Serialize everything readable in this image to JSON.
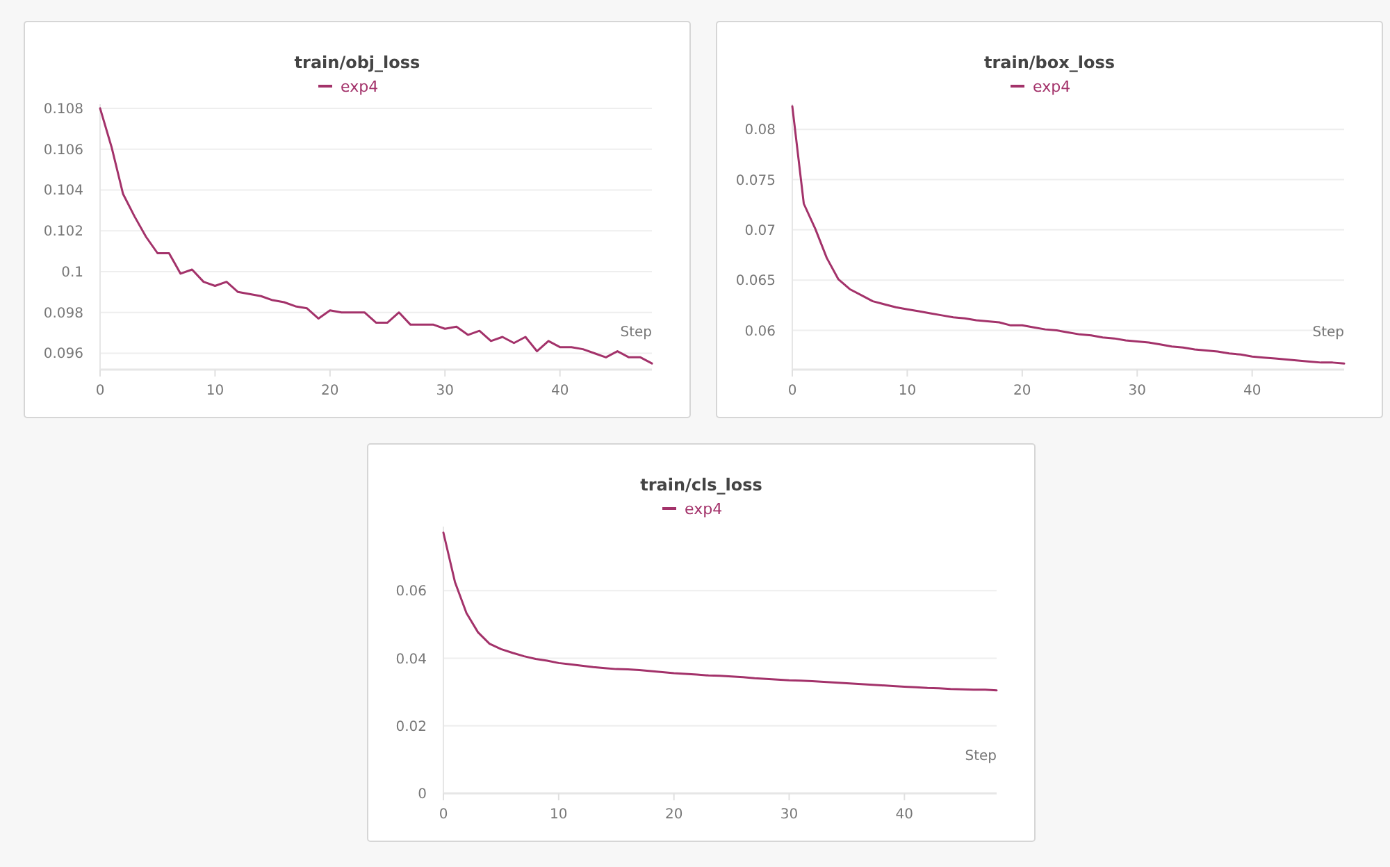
{
  "chart_data": [
    {
      "type": "line",
      "title": "train/obj_loss",
      "xlabel": "Step",
      "x": [
        0,
        1,
        2,
        3,
        4,
        5,
        6,
        7,
        8,
        9,
        10,
        11,
        12,
        13,
        14,
        15,
        16,
        17,
        18,
        19,
        20,
        21,
        22,
        23,
        24,
        25,
        26,
        27,
        28,
        29,
        30,
        31,
        32,
        33,
        34,
        35,
        36,
        37,
        38,
        39,
        40,
        41,
        42,
        43,
        44,
        45,
        46,
        47,
        48
      ],
      "series": [
        {
          "name": "exp4",
          "color": "#a3326a",
          "values": [
            0.108,
            0.1061,
            0.1038,
            0.1027,
            0.1017,
            0.1009,
            0.1009,
            0.0999,
            0.1001,
            0.0995,
            0.0993,
            0.0995,
            0.099,
            0.0989,
            0.0988,
            0.0986,
            0.0985,
            0.0983,
            0.0982,
            0.0977,
            0.0981,
            0.098,
            0.098,
            0.098,
            0.0975,
            0.0975,
            0.098,
            0.0974,
            0.0974,
            0.0974,
            0.0972,
            0.0973,
            0.0969,
            0.0971,
            0.0966,
            0.0968,
            0.0965,
            0.0968,
            0.0961,
            0.0966,
            0.0963,
            0.0963,
            0.0962,
            0.096,
            0.0958,
            0.0961,
            0.0958,
            0.0958,
            0.0955
          ]
        }
      ],
      "xlim": [
        0,
        48
      ],
      "xticks": [
        0,
        10,
        20,
        30,
        40
      ],
      "ylim": [
        0.0952,
        0.1082
      ],
      "yticks": [
        0.096,
        0.098,
        0.1,
        0.102,
        0.104,
        0.106,
        0.108
      ],
      "grid": "y",
      "legend": "top",
      "marker": "none",
      "line_style": "solid"
    },
    {
      "type": "line",
      "title": "train/box_loss",
      "xlabel": "Step",
      "x": [
        0,
        1,
        2,
        3,
        4,
        5,
        6,
        7,
        8,
        9,
        10,
        11,
        12,
        13,
        14,
        15,
        16,
        17,
        18,
        19,
        20,
        21,
        22,
        23,
        24,
        25,
        26,
        27,
        28,
        29,
        30,
        31,
        32,
        33,
        34,
        35,
        36,
        37,
        38,
        39,
        40,
        41,
        42,
        43,
        44,
        45,
        46,
        47,
        48
      ],
      "series": [
        {
          "name": "exp4",
          "color": "#a3326a",
          "values": [
            0.0823,
            0.0726,
            0.0701,
            0.0672,
            0.0651,
            0.0641,
            0.0635,
            0.0629,
            0.0626,
            0.0623,
            0.0621,
            0.0619,
            0.0617,
            0.0615,
            0.0613,
            0.0612,
            0.061,
            0.0609,
            0.0608,
            0.0605,
            0.0605,
            0.0603,
            0.0601,
            0.06,
            0.0598,
            0.0596,
            0.0595,
            0.0593,
            0.0592,
            0.059,
            0.0589,
            0.0588,
            0.0586,
            0.0584,
            0.0583,
            0.0581,
            0.058,
            0.0579,
            0.0577,
            0.0576,
            0.0574,
            0.0573,
            0.0572,
            0.0571,
            0.057,
            0.0569,
            0.0568,
            0.0568,
            0.0567
          ]
        }
      ],
      "xlim": [
        0,
        48
      ],
      "xticks": [
        0,
        10,
        20,
        30,
        40
      ],
      "ylim": [
        0.0561,
        0.0825
      ],
      "yticks": [
        0.06,
        0.065,
        0.07,
        0.075,
        0.08
      ],
      "grid": "y",
      "legend": "top",
      "marker": "none",
      "line_style": "solid"
    },
    {
      "type": "line",
      "title": "train/cls_loss",
      "xlabel": "Step",
      "x": [
        0,
        1,
        2,
        3,
        4,
        5,
        6,
        7,
        8,
        9,
        10,
        11,
        12,
        13,
        14,
        15,
        16,
        17,
        18,
        19,
        20,
        21,
        22,
        23,
        24,
        25,
        26,
        27,
        28,
        29,
        30,
        31,
        32,
        33,
        34,
        35,
        36,
        37,
        38,
        39,
        40,
        41,
        42,
        43,
        44,
        45,
        46,
        47,
        48
      ],
      "series": [
        {
          "name": "exp4",
          "color": "#a3326a",
          "values": [
            0.0772,
            0.0626,
            0.0534,
            0.0477,
            0.0443,
            0.0427,
            0.0416,
            0.0406,
            0.0398,
            0.0393,
            0.0386,
            0.0382,
            0.0378,
            0.0374,
            0.0371,
            0.0368,
            0.0367,
            0.0365,
            0.0362,
            0.0359,
            0.0356,
            0.0354,
            0.0352,
            0.0349,
            0.0348,
            0.0346,
            0.0344,
            0.0341,
            0.0339,
            0.0337,
            0.0335,
            0.0334,
            0.0332,
            0.033,
            0.0328,
            0.0326,
            0.0324,
            0.0322,
            0.032,
            0.0318,
            0.0316,
            0.0314,
            0.0312,
            0.0311,
            0.0309,
            0.0308,
            0.0307,
            0.0307,
            0.0305
          ]
        }
      ],
      "xlim": [
        0,
        48
      ],
      "xticks": [
        0,
        10,
        20,
        30,
        40
      ],
      "ylim": [
        0,
        0.079
      ],
      "yticks": [
        0,
        0.02,
        0.04,
        0.06
      ],
      "grid": "y",
      "legend": "top",
      "marker": "none",
      "line_style": "solid"
    }
  ]
}
